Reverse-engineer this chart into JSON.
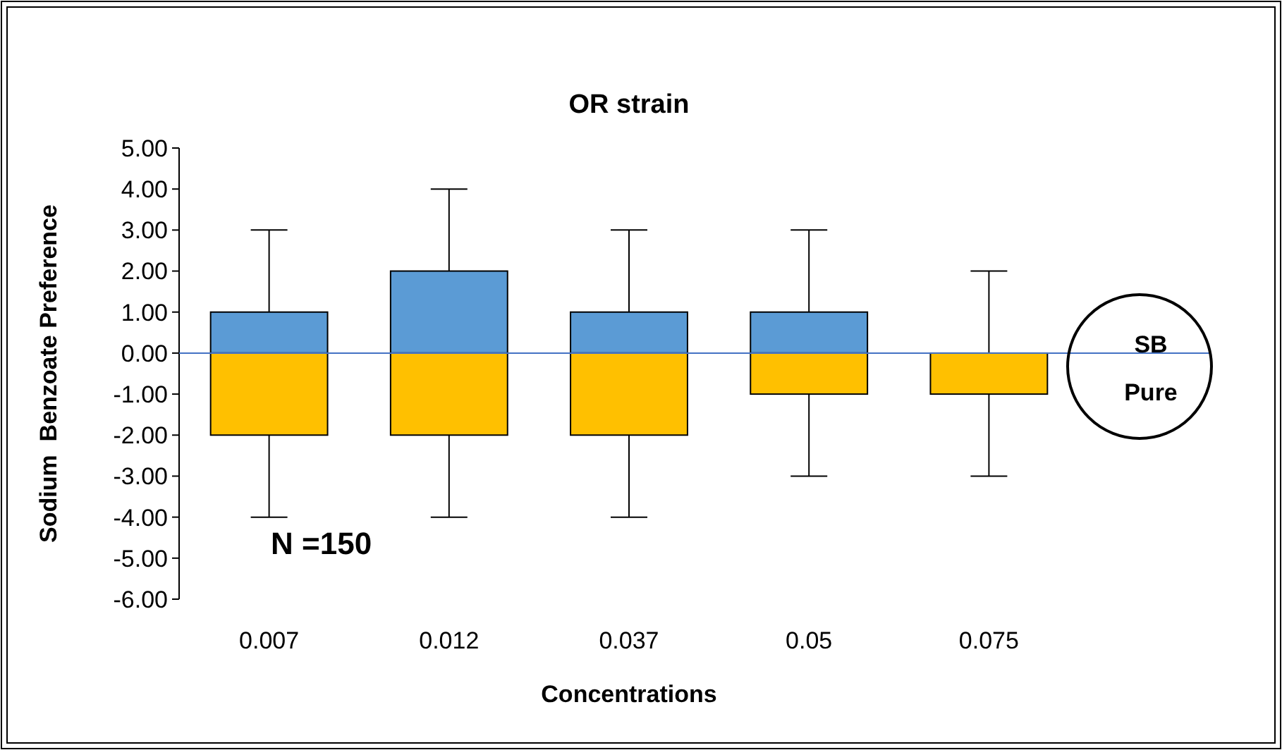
{
  "chart_data": {
    "type": "bar",
    "stacked": true,
    "title": "OR strain",
    "xlabel": "Concentrations",
    "ylabel": "Sodium  Benzoate Preference",
    "categories": [
      "0.007",
      "0.012",
      "0.037",
      "0.05",
      "0.075"
    ],
    "series": [
      {
        "color": "#5b9bd5",
        "values": [
          1,
          2,
          1,
          1,
          0
        ],
        "errors": [
          [
            1,
            3
          ],
          [
            2,
            4
          ],
          [
            1,
            3
          ],
          [
            1,
            3
          ],
          [
            0,
            2
          ]
        ]
      },
      {
        "color": "#ffc000",
        "values": [
          -2,
          -2,
          -2,
          -1,
          -1
        ],
        "errors": [
          [
            -4,
            -2
          ],
          [
            -4,
            -2
          ],
          [
            -4,
            -2
          ],
          [
            -3,
            -1
          ],
          [
            -3,
            -1
          ]
        ]
      }
    ],
    "ylim": [
      -6,
      5
    ],
    "yticks": [
      {
        "value": -6,
        "label": "-6.00"
      },
      {
        "value": -5,
        "label": "-5.00"
      },
      {
        "value": -4,
        "label": "-4.00"
      },
      {
        "value": -3,
        "label": "-3.00"
      },
      {
        "value": -2,
        "label": "-2.00"
      },
      {
        "value": -1,
        "label": "-1.00"
      },
      {
        "value": 0,
        "label": "0.00"
      },
      {
        "value": 1,
        "label": "1.00"
      },
      {
        "value": 2,
        "label": "2.00"
      },
      {
        "value": 3,
        "label": "3.00"
      },
      {
        "value": 4,
        "label": "4.00"
      },
      {
        "value": 5,
        "label": "5.00"
      }
    ],
    "ref_lines": [
      {
        "axis": "y",
        "value": 0,
        "color": "#4472c4"
      }
    ],
    "annotations": [
      "N =150",
      "SB",
      "Pure"
    ],
    "grid": false
  }
}
